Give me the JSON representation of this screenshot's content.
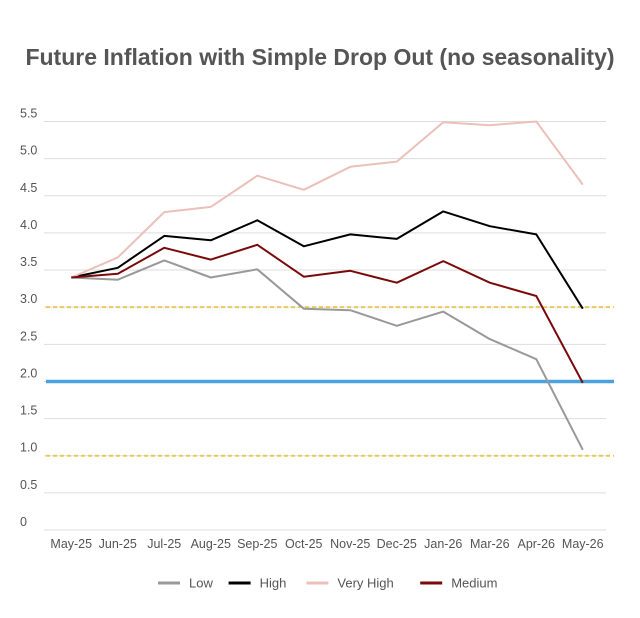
{
  "chart_data": {
    "type": "line",
    "title": "Future Inflation with Simple Drop Out (no seasonality)",
    "xlabel": "",
    "ylabel": "",
    "categories": [
      "May-25",
      "Jun-25",
      "Jul-25",
      "Aug-25",
      "Sep-25",
      "Oct-25",
      "Nov-25",
      "Dec-25",
      "Jan-26",
      "Mar-26",
      "Apr-26",
      "May-26"
    ],
    "y_ticks": [
      "0",
      "0.5",
      "1.0",
      "1.5",
      "2.0",
      "2.5",
      "3.0",
      "3.5",
      "4.0",
      "4.5",
      "5.0",
      "5.5"
    ],
    "ylim": [
      0,
      5.5
    ],
    "grid": true,
    "legend_position": "bottom",
    "series": [
      {
        "name": "Low",
        "color": "#999999",
        "values": [
          3.4,
          3.37,
          3.63,
          3.4,
          3.51,
          2.98,
          2.96,
          2.75,
          2.94,
          2.57,
          2.3,
          1.08
        ]
      },
      {
        "name": "High",
        "color": "#000000",
        "values": [
          3.4,
          3.53,
          3.96,
          3.9,
          4.17,
          3.82,
          3.98,
          3.92,
          4.29,
          4.09,
          3.98,
          2.98
        ]
      },
      {
        "name": "Very High",
        "color": "#ebc0b8",
        "values": [
          3.4,
          3.67,
          4.28,
          4.35,
          4.77,
          4.58,
          4.89,
          4.96,
          5.49,
          5.45,
          5.5,
          4.65
        ]
      },
      {
        "name": "Medium",
        "color": "#7a0a0a",
        "values": [
          3.4,
          3.45,
          3.8,
          3.64,
          3.84,
          3.41,
          3.49,
          3.33,
          3.62,
          3.33,
          3.15,
          1.98
        ]
      }
    ],
    "reference_lines": [
      {
        "value": 2.0,
        "color": "#4aa3df",
        "style": "solid"
      },
      {
        "value": 3.0,
        "color": "#e8c95a",
        "style": "dashed"
      },
      {
        "value": 1.0,
        "color": "#e8c95a",
        "style": "dashed"
      }
    ]
  }
}
